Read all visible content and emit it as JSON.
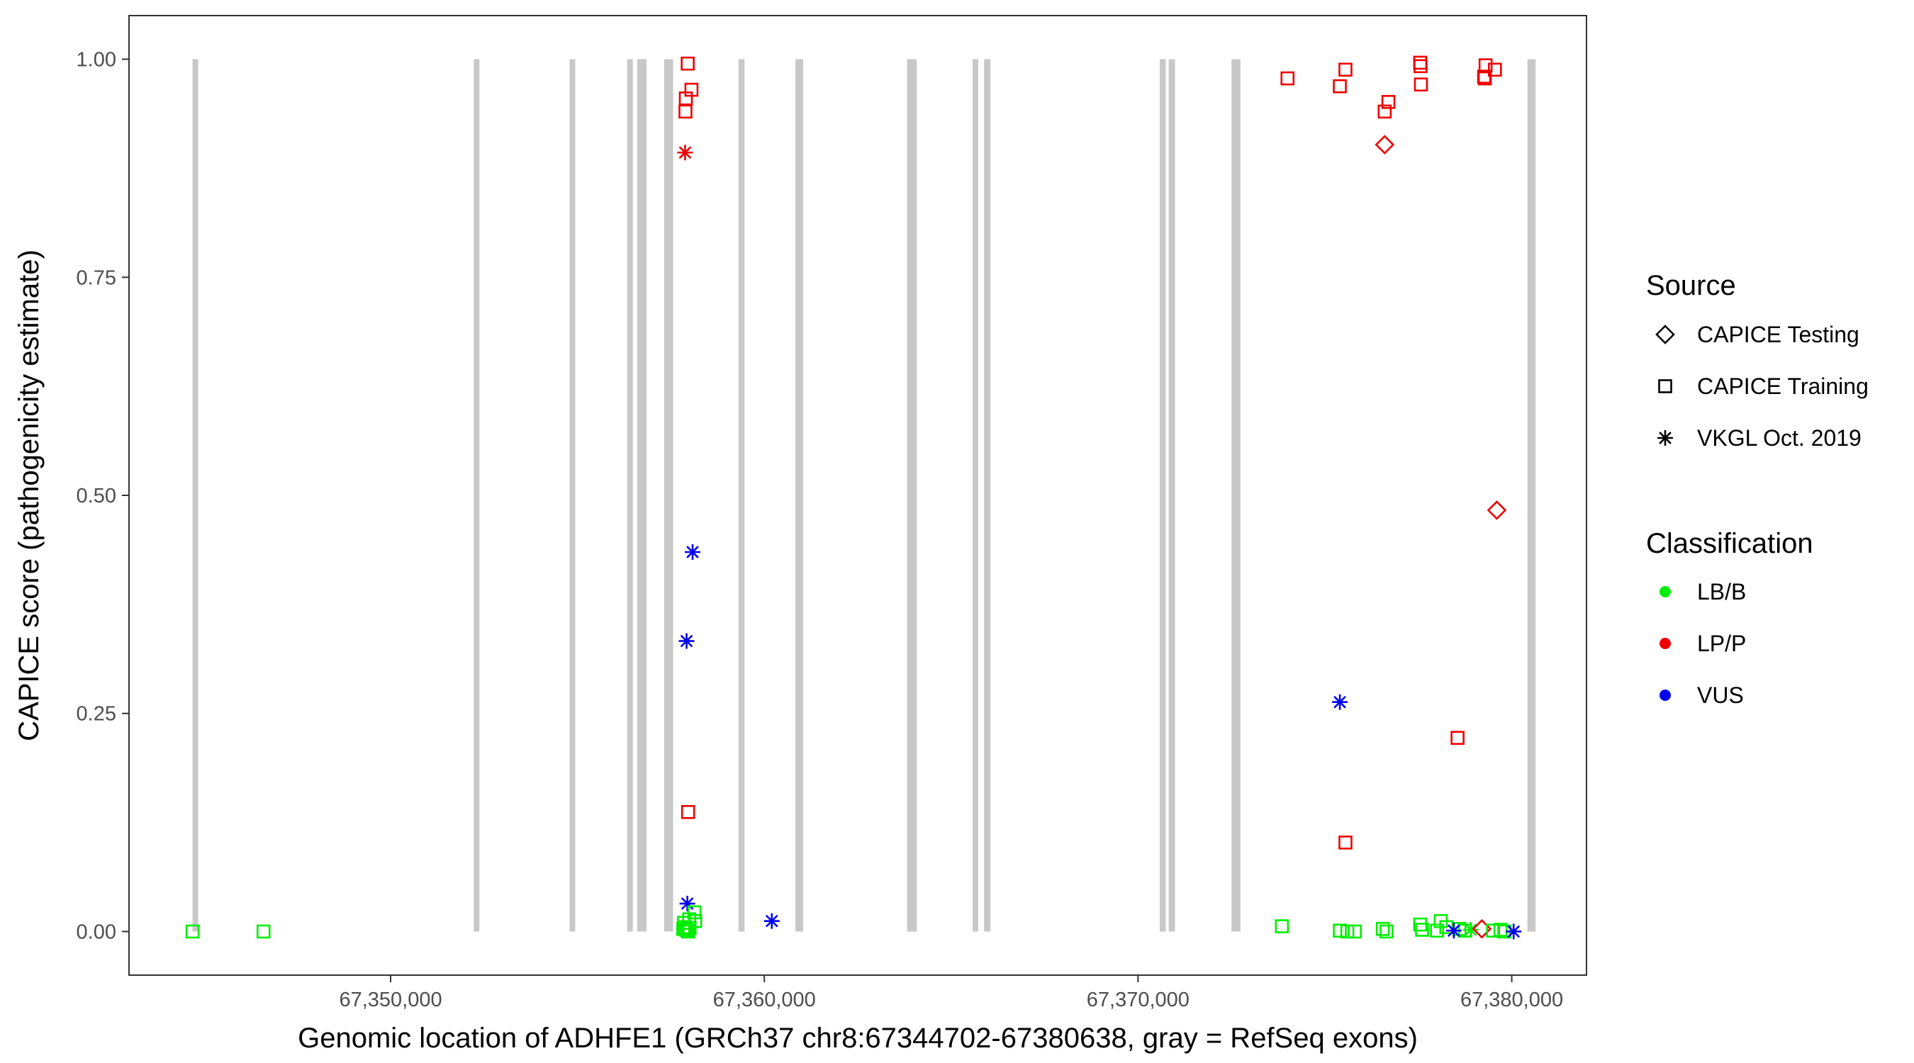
{
  "chart_data": {
    "type": "scatter",
    "title": "",
    "xlabel": "Genomic location of ADHFE1 (GRCh37 chr8:67344702-67380638, gray = RefSeq exons)",
    "ylabel": "CAPICE score (pathogenicity estimate)",
    "xlim": [
      67343000,
      67382000
    ],
    "ylim": [
      -0.05,
      1.05
    ],
    "x_ticks": [
      67350000,
      67360000,
      67370000,
      67380000
    ],
    "x_tick_labels": [
      "67,350,000",
      "67,360,000",
      "67,370,000",
      "67,380,000"
    ],
    "y_ticks": [
      0.0,
      0.25,
      0.5,
      0.75,
      1.0
    ],
    "y_tick_labels": [
      "0.00",
      "0.25",
      "0.50",
      "0.75",
      "1.00"
    ],
    "grid": false,
    "exon_color": "#c8c8c8",
    "exons": [
      {
        "start": 67344702,
        "end": 67344850
      },
      {
        "start": 67352230,
        "end": 67352370
      },
      {
        "start": 67354800,
        "end": 67354930
      },
      {
        "start": 67356330,
        "end": 67356480
      },
      {
        "start": 67356600,
        "end": 67356850
      },
      {
        "start": 67357320,
        "end": 67357560
      },
      {
        "start": 67359310,
        "end": 67359470
      },
      {
        "start": 67360830,
        "end": 67361040
      },
      {
        "start": 67363820,
        "end": 67364080
      },
      {
        "start": 67365580,
        "end": 67365720
      },
      {
        "start": 67365880,
        "end": 67366050
      },
      {
        "start": 67370580,
        "end": 67370740
      },
      {
        "start": 67370820,
        "end": 67370990
      },
      {
        "start": 67372500,
        "end": 67372740
      },
      {
        "start": 67380420,
        "end": 67380638
      }
    ],
    "legend": {
      "placement": "right",
      "source_title": "Source",
      "sources": [
        {
          "key": "testing",
          "label": "CAPICE Testing",
          "shape": "diamond"
        },
        {
          "key": "training",
          "label": "CAPICE Training",
          "shape": "square"
        },
        {
          "key": "vkgl",
          "label": "VKGL Oct. 2019",
          "shape": "asterisk"
        }
      ],
      "class_title": "Classification",
      "classes": [
        {
          "key": "lbb",
          "label": "LB/B",
          "color": "#00ee00"
        },
        {
          "key": "lpp",
          "label": "LP/P",
          "color": "#ee0000"
        },
        {
          "key": "vus",
          "label": "VUS",
          "color": "#0000ee"
        }
      ]
    },
    "points": [
      {
        "x": 67344700,
        "y": 0.0,
        "source": "training",
        "cls": "lbb"
      },
      {
        "x": 67346600,
        "y": 0.0,
        "source": "training",
        "cls": "lbb"
      },
      {
        "x": 67357950,
        "y": 0.995,
        "source": "training",
        "cls": "lpp"
      },
      {
        "x": 67357900,
        "y": 0.955,
        "source": "training",
        "cls": "lpp"
      },
      {
        "x": 67358050,
        "y": 0.965,
        "source": "training",
        "cls": "lpp"
      },
      {
        "x": 67357890,
        "y": 0.94,
        "source": "training",
        "cls": "lpp"
      },
      {
        "x": 67357880,
        "y": 0.893,
        "source": "vkgl",
        "cls": "lpp"
      },
      {
        "x": 67358080,
        "y": 0.435,
        "source": "vkgl",
        "cls": "vus"
      },
      {
        "x": 67357920,
        "y": 0.333,
        "source": "vkgl",
        "cls": "vus"
      },
      {
        "x": 67357960,
        "y": 0.137,
        "source": "training",
        "cls": "lpp"
      },
      {
        "x": 67357940,
        "y": 0.032,
        "source": "vkgl",
        "cls": "vus"
      },
      {
        "x": 67358130,
        "y": 0.022,
        "source": "training",
        "cls": "lbb"
      },
      {
        "x": 67358150,
        "y": 0.012,
        "source": "training",
        "cls": "lbb"
      },
      {
        "x": 67357990,
        "y": 0.014,
        "source": "training",
        "cls": "lbb"
      },
      {
        "x": 67357850,
        "y": 0.01,
        "source": "training",
        "cls": "lbb"
      },
      {
        "x": 67357880,
        "y": 0.005,
        "source": "training",
        "cls": "lbb"
      },
      {
        "x": 67357830,
        "y": 0.003,
        "source": "training",
        "cls": "lbb"
      },
      {
        "x": 67357910,
        "y": 0.002,
        "source": "training",
        "cls": "lbb"
      },
      {
        "x": 67357950,
        "y": 0.001,
        "source": "training",
        "cls": "lbb"
      },
      {
        "x": 67358000,
        "y": 0.004,
        "source": "training",
        "cls": "lbb"
      },
      {
        "x": 67357960,
        "y": 0.0,
        "source": "training",
        "cls": "lbb"
      },
      {
        "x": 67360200,
        "y": 0.012,
        "source": "vkgl",
        "cls": "vus"
      },
      {
        "x": 67374000,
        "y": 0.978,
        "source": "training",
        "cls": "lpp"
      },
      {
        "x": 67375400,
        "y": 0.969,
        "source": "training",
        "cls": "lpp"
      },
      {
        "x": 67375550,
        "y": 0.988,
        "source": "training",
        "cls": "lpp"
      },
      {
        "x": 67376600,
        "y": 0.94,
        "source": "training",
        "cls": "lpp"
      },
      {
        "x": 67376700,
        "y": 0.951,
        "source": "training",
        "cls": "lpp"
      },
      {
        "x": 67376600,
        "y": 0.902,
        "source": "testing",
        "cls": "lpp"
      },
      {
        "x": 67377550,
        "y": 0.996,
        "source": "training",
        "cls": "lpp"
      },
      {
        "x": 67377560,
        "y": 0.992,
        "source": "training",
        "cls": "lpp"
      },
      {
        "x": 67377570,
        "y": 0.971,
        "source": "training",
        "cls": "lpp"
      },
      {
        "x": 67379300,
        "y": 0.993,
        "source": "training",
        "cls": "lpp"
      },
      {
        "x": 67379260,
        "y": 0.98,
        "source": "training",
        "cls": "lpp"
      },
      {
        "x": 67379280,
        "y": 0.978,
        "source": "training",
        "cls": "lpp"
      },
      {
        "x": 67379550,
        "y": 0.988,
        "source": "training",
        "cls": "lpp"
      },
      {
        "x": 67379600,
        "y": 0.483,
        "source": "testing",
        "cls": "lpp"
      },
      {
        "x": 67375400,
        "y": 0.263,
        "source": "vkgl",
        "cls": "vus"
      },
      {
        "x": 67378550,
        "y": 0.222,
        "source": "training",
        "cls": "lpp"
      },
      {
        "x": 67375550,
        "y": 0.102,
        "source": "training",
        "cls": "lpp"
      },
      {
        "x": 67373850,
        "y": 0.006,
        "source": "training",
        "cls": "lbb"
      },
      {
        "x": 67375400,
        "y": 0.001,
        "source": "training",
        "cls": "lbb"
      },
      {
        "x": 67375600,
        "y": 0.0,
        "source": "training",
        "cls": "lbb"
      },
      {
        "x": 67375800,
        "y": 0.0,
        "source": "training",
        "cls": "lbb"
      },
      {
        "x": 67376550,
        "y": 0.003,
        "source": "training",
        "cls": "lbb"
      },
      {
        "x": 67376650,
        "y": 0.0,
        "source": "training",
        "cls": "lbb"
      },
      {
        "x": 67377550,
        "y": 0.008,
        "source": "training",
        "cls": "lbb"
      },
      {
        "x": 67377600,
        "y": 0.002,
        "source": "training",
        "cls": "lbb"
      },
      {
        "x": 67378000,
        "y": 0.001,
        "source": "training",
        "cls": "lbb"
      },
      {
        "x": 67378100,
        "y": 0.012,
        "source": "training",
        "cls": "lbb"
      },
      {
        "x": 67378250,
        "y": 0.005,
        "source": "training",
        "cls": "lbb"
      },
      {
        "x": 67378600,
        "y": 0.003,
        "source": "training",
        "cls": "lbb"
      },
      {
        "x": 67378750,
        "y": 0.001,
        "source": "training",
        "cls": "lbb"
      },
      {
        "x": 67378900,
        "y": 0.002,
        "source": "vkgl",
        "cls": "lbb"
      },
      {
        "x": 67379200,
        "y": 0.003,
        "source": "testing",
        "cls": "lpp"
      },
      {
        "x": 67379500,
        "y": 0.001,
        "source": "training",
        "cls": "lbb"
      },
      {
        "x": 67379700,
        "y": 0.002,
        "source": "training",
        "cls": "lbb"
      },
      {
        "x": 67379800,
        "y": 0.0,
        "source": "training",
        "cls": "lbb"
      },
      {
        "x": 67378450,
        "y": 0.001,
        "source": "vkgl",
        "cls": "vus"
      },
      {
        "x": 67380050,
        "y": 0.0,
        "source": "vkgl",
        "cls": "vus"
      }
    ]
  }
}
